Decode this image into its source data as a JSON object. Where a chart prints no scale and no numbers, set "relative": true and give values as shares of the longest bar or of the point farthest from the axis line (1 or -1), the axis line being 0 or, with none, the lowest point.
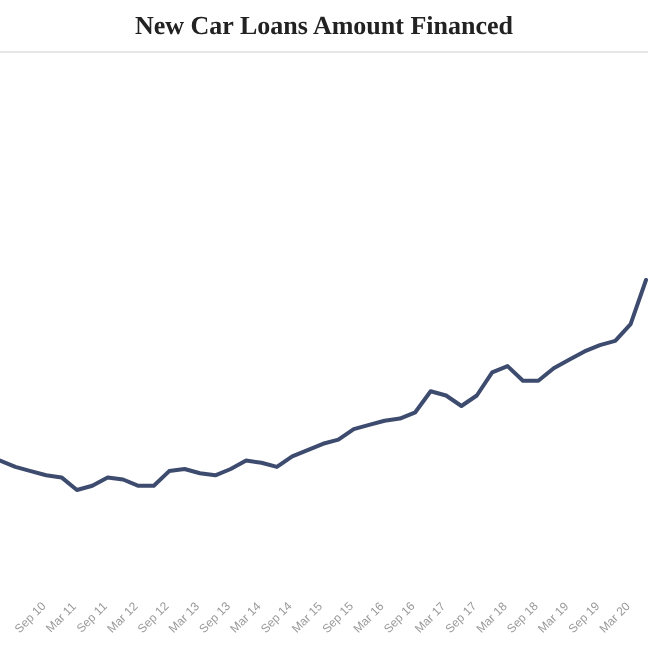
{
  "chart_data": {
    "type": "line",
    "title": "New Car Loans Amount Financed",
    "relative": true,
    "categories": [
      null,
      null,
      "Sep 10",
      null,
      "Mar 11",
      null,
      "Sep 11",
      null,
      "Mar 12",
      null,
      "Sep 12",
      null,
      "Mar 13",
      null,
      "Sep 13",
      null,
      "Mar 14",
      null,
      "Sep 14",
      null,
      "Mar 15",
      null,
      "Sep 15",
      null,
      "Mar 16",
      null,
      "Sep 16",
      null,
      "Mar 17",
      null,
      "Sep 17",
      null,
      "Mar 18",
      null,
      "Sep 18",
      null,
      "Mar 19",
      null,
      "Sep 19",
      null,
      "Mar 20",
      null,
      null
    ],
    "series": [
      {
        "color": "#3d4b6e",
        "values": [
          0.14,
          0.11,
          0.09,
          0.07,
          0.06,
          0,
          0.02,
          0.06,
          0.05,
          0.02,
          0.02,
          0.09,
          0.1,
          0.08,
          0.07,
          0.1,
          0.14,
          0.13,
          0.11,
          0.16,
          0.19,
          0.22,
          0.24,
          0.29,
          0.31,
          0.33,
          0.34,
          0.37,
          0.47,
          0.45,
          0.4,
          0.45,
          0.56,
          0.59,
          0.52,
          0.52,
          0.58,
          0.62,
          0.66,
          0.69,
          0.71,
          0.79,
          1
        ]
      }
    ]
  }
}
